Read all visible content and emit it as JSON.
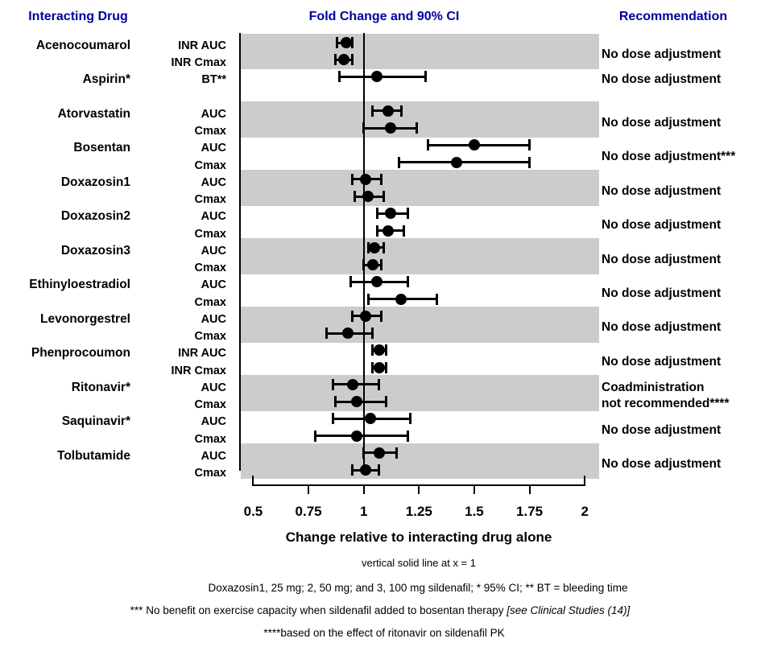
{
  "header": {
    "left": "Interacting Drug",
    "center": "Fold Change and 90% CI",
    "right": "Recommendation"
  },
  "colors": {
    "header_text": "#0000A0",
    "band_gray": "#CCCCCC",
    "marker_black": "#000000",
    "background": "#FFFFFF"
  },
  "footnotes": {
    "line1": "vertical solid line at x = 1",
    "line2": "Doxazosin1, 25 mg; 2, 50 mg; and 3, 100 mg sildenafil; * 95% CI; ** BT = bleeding time",
    "line3_normal": "*** No benefit on exercise capacity when sildenafil added to bosentan therapy  ",
    "line3_italic": "[see Clinical Studies (14)]",
    "line4": "****based on the effect of ritonavir on sildenafil PK"
  },
  "chart_data": {
    "type": "forest",
    "title": "Fold Change and 90% CI",
    "xlabel": "Change relative to interacting drug alone",
    "xlim": [
      0.5,
      2
    ],
    "xticks": [
      0.5,
      0.75,
      1,
      1.25,
      1.5,
      1.75,
      2
    ],
    "xtick_labels": [
      "0.5",
      "0.75",
      "1",
      "1.25",
      "1.5",
      "1.75",
      "2"
    ],
    "reference_line_x": 1,
    "legend_note": "points are point estimates with 90% CI error bars (* drugs use 95% CI)",
    "groups": [
      {
        "drug": "Acenocoumarol",
        "shaded": true,
        "gap_after": false,
        "recommendation_lines": [
          "No dose adjustment"
        ],
        "rows": [
          {
            "measure": "INR AUC",
            "est": 0.92,
            "lo": 0.88,
            "hi": 0.95
          },
          {
            "measure": "INR Cmax",
            "est": 0.91,
            "lo": 0.87,
            "hi": 0.95
          }
        ]
      },
      {
        "drug": "Aspirin*",
        "shaded": false,
        "gap_after": true,
        "recommendation_lines": [
          "No dose adjustment"
        ],
        "rows": [
          {
            "measure": "BT**",
            "est": 1.06,
            "lo": 0.89,
            "hi": 1.28
          }
        ]
      },
      {
        "drug": "Atorvastatin",
        "shaded": true,
        "gap_after": false,
        "recommendation_lines": [
          "No dose adjustment"
        ],
        "rows": [
          {
            "measure": "AUC",
            "est": 1.11,
            "lo": 1.04,
            "hi": 1.17
          },
          {
            "measure": "Cmax",
            "est": 1.12,
            "lo": 1.0,
            "hi": 1.24
          }
        ]
      },
      {
        "drug": "Bosentan",
        "shaded": false,
        "gap_after": false,
        "recommendation_lines": [
          "No dose adjustment***"
        ],
        "rows": [
          {
            "measure": "AUC",
            "est": 1.5,
            "lo": 1.29,
            "hi": 1.75
          },
          {
            "measure": "Cmax",
            "est": 1.42,
            "lo": 1.16,
            "hi": 1.75
          }
        ]
      },
      {
        "drug": "Doxazosin1",
        "shaded": true,
        "gap_after": false,
        "recommendation_lines": [
          "No dose adjustment"
        ],
        "rows": [
          {
            "measure": "AUC",
            "est": 1.01,
            "lo": 0.95,
            "hi": 1.08
          },
          {
            "measure": "Cmax",
            "est": 1.02,
            "lo": 0.96,
            "hi": 1.09
          }
        ]
      },
      {
        "drug": "Doxazosin2",
        "shaded": false,
        "gap_after": false,
        "recommendation_lines": [
          "No dose adjustment"
        ],
        "rows": [
          {
            "measure": "AUC",
            "est": 1.12,
            "lo": 1.06,
            "hi": 1.2
          },
          {
            "measure": "Cmax",
            "est": 1.11,
            "lo": 1.06,
            "hi": 1.18
          }
        ]
      },
      {
        "drug": "Doxazosin3",
        "shaded": true,
        "gap_after": false,
        "recommendation_lines": [
          "No dose adjustment"
        ],
        "rows": [
          {
            "measure": "AUC",
            "est": 1.05,
            "lo": 1.02,
            "hi": 1.09
          },
          {
            "measure": "Cmax",
            "est": 1.04,
            "lo": 1.0,
            "hi": 1.08
          }
        ]
      },
      {
        "drug": "Ethinyloestradiol",
        "shaded": false,
        "gap_after": false,
        "recommendation_lines": [
          "No dose adjustment"
        ],
        "rows": [
          {
            "measure": "AUC",
            "est": 1.06,
            "lo": 0.94,
            "hi": 1.2
          },
          {
            "measure": "Cmax",
            "est": 1.17,
            "lo": 1.02,
            "hi": 1.33
          }
        ]
      },
      {
        "drug": "Levonorgestrel",
        "shaded": true,
        "gap_after": false,
        "recommendation_lines": [
          "No dose adjustment"
        ],
        "rows": [
          {
            "measure": "AUC",
            "est": 1.01,
            "lo": 0.95,
            "hi": 1.08
          },
          {
            "measure": "Cmax",
            "est": 0.93,
            "lo": 0.83,
            "hi": 1.04
          }
        ]
      },
      {
        "drug": "Phenprocoumon",
        "shaded": false,
        "gap_after": false,
        "recommendation_lines": [
          "No dose adjustment"
        ],
        "rows": [
          {
            "measure": "INR AUC",
            "est": 1.07,
            "lo": 1.04,
            "hi": 1.1
          },
          {
            "measure": "INR Cmax",
            "est": 1.07,
            "lo": 1.04,
            "hi": 1.1
          }
        ]
      },
      {
        "drug": "Ritonavir*",
        "shaded": true,
        "gap_after": false,
        "recommendation_lines": [
          "Coadministration",
          "not recommended****"
        ],
        "rows": [
          {
            "measure": "AUC",
            "est": 0.95,
            "lo": 0.86,
            "hi": 1.07
          },
          {
            "measure": "Cmax",
            "est": 0.97,
            "lo": 0.87,
            "hi": 1.1
          }
        ]
      },
      {
        "drug": "Saquinavir*",
        "shaded": false,
        "gap_after": false,
        "recommendation_lines": [
          "No dose adjustment"
        ],
        "rows": [
          {
            "measure": "AUC",
            "est": 1.03,
            "lo": 0.86,
            "hi": 1.21
          },
          {
            "measure": "Cmax",
            "est": 0.97,
            "lo": 0.78,
            "hi": 1.2
          }
        ]
      },
      {
        "drug": "Tolbutamide",
        "shaded": true,
        "gap_after": false,
        "recommendation_lines": [
          "No dose adjustment"
        ],
        "rows": [
          {
            "measure": "AUC",
            "est": 1.07,
            "lo": 1.0,
            "hi": 1.15
          },
          {
            "measure": "Cmax",
            "est": 1.01,
            "lo": 0.95,
            "hi": 1.07
          }
        ]
      }
    ]
  }
}
